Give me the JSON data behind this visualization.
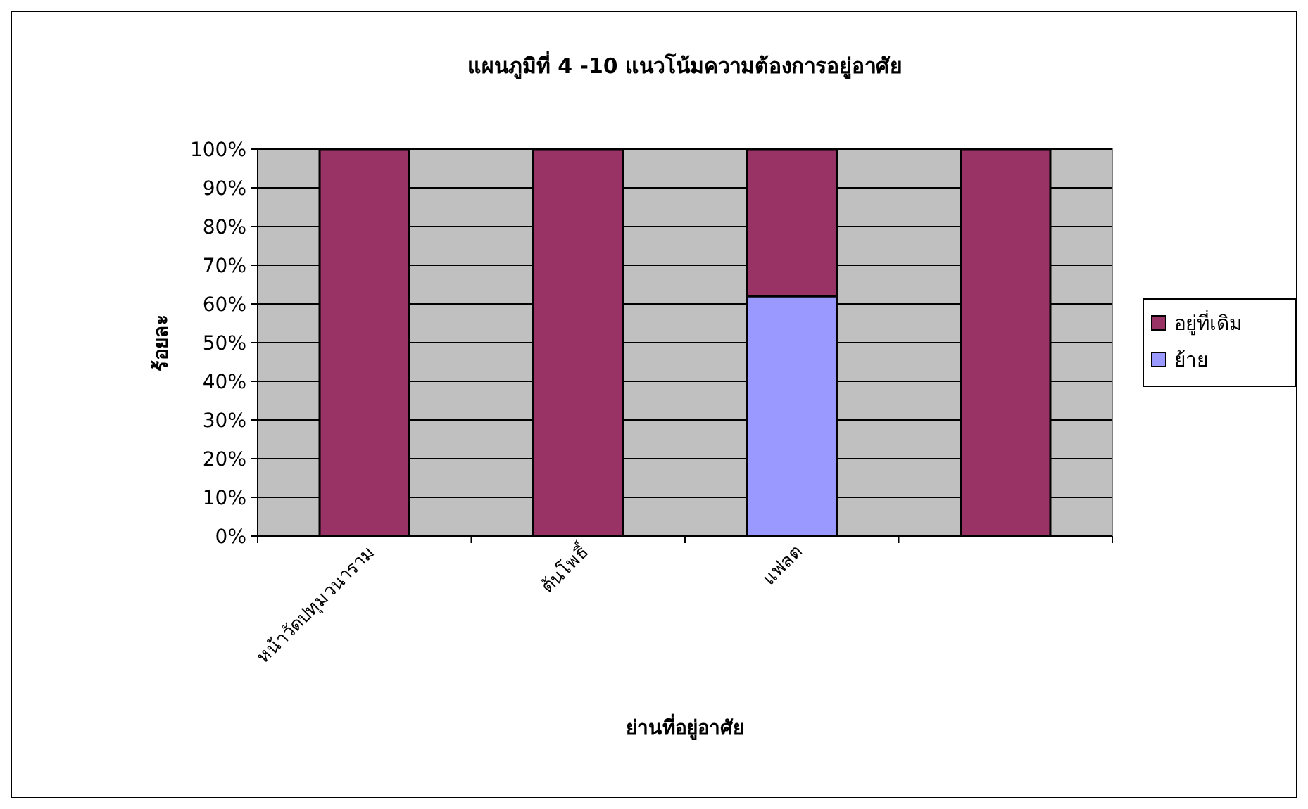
{
  "chart_data": {
    "type": "bar",
    "title": "แผนภูมิที่ 4 -10 แนวโน้มความต้องการอยู่อาศัย",
    "xlabel": "ย่านที่อยู่อาศัย",
    "ylabel": "ร้อยละ",
    "categories": [
      "หน้าวัดปทุมวนาราม",
      "ต้นโพธิ์",
      "แฟลต",
      null
    ],
    "stacked": true,
    "series": [
      {
        "name": "ย้าย",
        "color": "#9999ff",
        "values": [
          0,
          0,
          62,
          0
        ]
      },
      {
        "name": "อยู่ที่เดิม",
        "color": "#993366",
        "values": [
          100,
          100,
          38,
          100
        ]
      }
    ],
    "ylim": [
      0,
      100
    ],
    "yticks": [
      {
        "value": 0,
        "label": "0%"
      },
      {
        "value": 10,
        "label": "10%"
      },
      {
        "value": 20,
        "label": "20%"
      },
      {
        "value": 30,
        "label": "30%"
      },
      {
        "value": 40,
        "label": "40%"
      },
      {
        "value": 50,
        "label": "50%"
      },
      {
        "value": 60,
        "label": "60%"
      },
      {
        "value": 70,
        "label": "70%"
      },
      {
        "value": 80,
        "label": "80%"
      },
      {
        "value": 90,
        "label": "90%"
      },
      {
        "value": 100,
        "label": "100%"
      }
    ],
    "grid": "y",
    "legend": "right"
  }
}
